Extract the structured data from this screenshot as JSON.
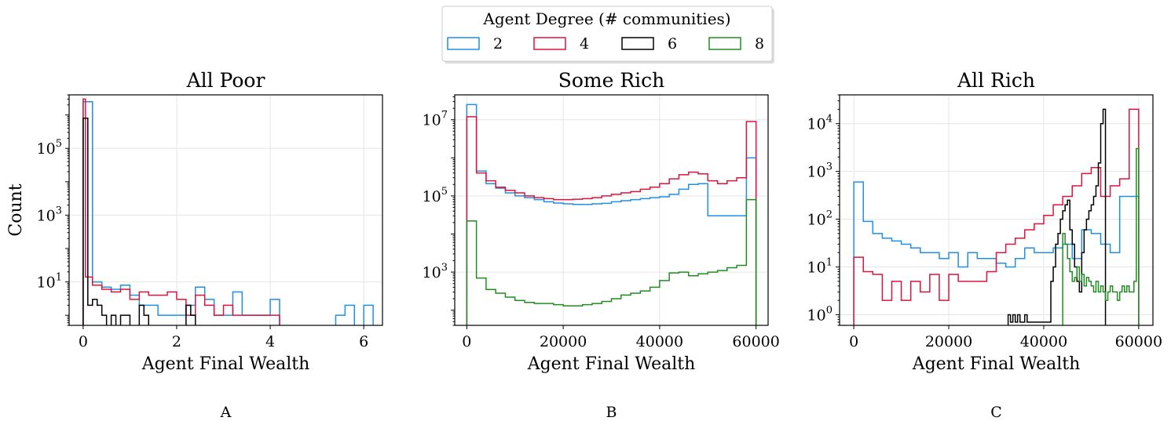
{
  "legend": {
    "title": "Agent Degree (# communities)",
    "entries": [
      {
        "label": "2",
        "color": "#1f8fe8"
      },
      {
        "label": "4",
        "color": "#dc143c"
      },
      {
        "label": "6",
        "color": "#000000"
      },
      {
        "label": "8",
        "color": "#228b22"
      }
    ]
  },
  "chart_data": [
    {
      "type": "histogram-step",
      "panel_label": "A",
      "title": "All Poor",
      "xlabel": "Agent Final Wealth",
      "ylabel": "Count",
      "xscale": "linear",
      "yscale": "log",
      "xlim": [
        -0.3,
        6.4
      ],
      "ylim": [
        0.5,
        4000000
      ],
      "xticks": [
        0,
        2,
        4,
        6
      ],
      "xtick_labels": [
        "0",
        "2",
        "4",
        "6"
      ],
      "yticks": [
        10,
        1000,
        100000
      ],
      "ytick_labels": [
        "10^1",
        "10^3",
        "10^5"
      ],
      "grid": true,
      "series": [
        {
          "name": "2",
          "edges": [
            0,
            0.2,
            0.4,
            0.6,
            0.8,
            1.0,
            1.2,
            1.4,
            1.6,
            1.8,
            2.0,
            2.2,
            2.4,
            2.6,
            2.8,
            3.0,
            3.2,
            3.4,
            3.6,
            3.8,
            4.0,
            4.2,
            4.4,
            4.6,
            4.8,
            5.0,
            5.2,
            5.4,
            5.6,
            5.8,
            6.0,
            6.2
          ],
          "counts": [
            2500000,
            10,
            7,
            6,
            8,
            4,
            2,
            2,
            1,
            1,
            1,
            2,
            7,
            3,
            1,
            1,
            5,
            1,
            1,
            1,
            3,
            0,
            0,
            0,
            0,
            0,
            0,
            1,
            2,
            0,
            2
          ]
        },
        {
          "name": "4",
          "edges": [
            0,
            0.05,
            0.2,
            0.4,
            0.6,
            0.8,
            1.0,
            1.2,
            1.4,
            1.6,
            1.8,
            2.0,
            2.2,
            2.4,
            2.6,
            2.8,
            3.0,
            3.2,
            3.4,
            3.6,
            3.8,
            4.0,
            4.2
          ],
          "counts": [
            3000000,
            14,
            8,
            6,
            5,
            6,
            3,
            5,
            4,
            4,
            5,
            3,
            1,
            4,
            2,
            1,
            2,
            1,
            1,
            1,
            1,
            1
          ]
        },
        {
          "name": "6",
          "edges": [
            0,
            0.1,
            0.2,
            0.3,
            0.4,
            0.5,
            0.6,
            0.7,
            0.8,
            0.9,
            1.0,
            1.1,
            1.2,
            1.3,
            1.4,
            2.2,
            2.3,
            2.4,
            2.5
          ],
          "counts": [
            800000,
            2,
            3,
            2,
            1,
            0,
            1,
            0,
            1,
            1,
            0,
            0,
            2,
            1,
            0,
            2,
            1,
            0
          ]
        },
        {
          "name": "8",
          "edges": [],
          "counts": []
        }
      ]
    },
    {
      "type": "histogram-step",
      "panel_label": "B",
      "title": "Some Rich",
      "xlabel": "Agent Final Wealth",
      "ylabel": "",
      "xscale": "linear",
      "yscale": "log",
      "xlim": [
        -2500,
        62500
      ],
      "ylim": [
        40,
        45000000
      ],
      "xticks": [
        0,
        20000,
        40000,
        60000
      ],
      "xtick_labels": [
        "0",
        "20000",
        "40000",
        "60000"
      ],
      "yticks": [
        1000,
        100000,
        10000000
      ],
      "ytick_labels": [
        "10^3",
        "10^5",
        "10^7"
      ],
      "grid": true,
      "series": [
        {
          "name": "2",
          "bin_start": 0,
          "bin_width": 2000,
          "counts": [
            25000000,
            450000,
            210000,
            160000,
            120000,
            100000,
            90000,
            80000,
            70000,
            65000,
            62000,
            60000,
            60000,
            62000,
            64000,
            70000,
            75000,
            80000,
            85000,
            90000,
            95000,
            110000,
            150000,
            200000,
            210000,
            30000,
            30000,
            30000,
            30000,
            1000000
          ]
        },
        {
          "name": "4",
          "bin_start": 0,
          "bin_width": 2000,
          "counts": [
            12000000,
            400000,
            250000,
            170000,
            140000,
            120000,
            100000,
            90000,
            85000,
            80000,
            80000,
            82000,
            85000,
            90000,
            100000,
            110000,
            120000,
            130000,
            150000,
            170000,
            210000,
            280000,
            360000,
            420000,
            380000,
            250000,
            210000,
            250000,
            300000,
            9000000
          ]
        },
        {
          "name": "6",
          "bin_start": 0,
          "bin_width": 2000,
          "counts": []
        },
        {
          "name": "8",
          "bin_start": 0,
          "bin_width": 2000,
          "counts": [
            22000,
            700,
            350,
            280,
            220,
            180,
            160,
            150,
            150,
            140,
            130,
            130,
            140,
            150,
            170,
            200,
            250,
            280,
            320,
            400,
            600,
            950,
            1000,
            800,
            900,
            1000,
            1100,
            1300,
            1500,
            80000
          ]
        }
      ]
    },
    {
      "type": "histogram-step",
      "panel_label": "C",
      "title": "All Rich",
      "xlabel": "Agent Final Wealth",
      "ylabel": "",
      "xscale": "linear",
      "yscale": "log",
      "xlim": [
        -3000,
        63000
      ],
      "ylim": [
        0.6,
        40000
      ],
      "xticks": [
        0,
        20000,
        40000,
        60000
      ],
      "xtick_labels": [
        "0",
        "20000",
        "40000",
        "60000"
      ],
      "yticks": [
        1,
        10,
        100,
        1000,
        10000
      ],
      "ytick_labels": [
        "10^0",
        "10^1",
        "10^2",
        "10^3",
        "10^4"
      ],
      "grid": true,
      "series": [
        {
          "name": "2",
          "bin_start": 0,
          "bin_width": 2000,
          "counts": [
            600,
            90,
            50,
            40,
            35,
            30,
            25,
            20,
            20,
            15,
            20,
            10,
            20,
            15,
            15,
            12,
            10,
            15,
            25,
            20,
            20,
            25,
            30,
            15,
            60,
            50,
            30,
            20,
            300,
            300
          ]
        },
        {
          "name": "4",
          "bin_start": 0,
          "bin_width": 2000,
          "counts": [
            16,
            8,
            7,
            2,
            5,
            2,
            5,
            3,
            7,
            2,
            7,
            5,
            5,
            5,
            8,
            20,
            30,
            40,
            60,
            80,
            120,
            200,
            300,
            500,
            900,
            1200,
            300,
            500,
            700,
            20000
          ]
        },
        {
          "name": "6",
          "bin_start": 32500,
          "bin_width": 500,
          "counts": [
            1,
            0.7,
            1,
            0.7,
            1,
            0.7,
            0.7,
            1,
            0.7,
            0.7,
            0.7,
            0.7,
            0.7,
            0.7,
            0.7,
            0.7,
            0.7,
            0.7,
            5,
            10,
            30,
            50,
            100,
            150,
            200,
            250,
            60,
            30,
            10,
            5,
            3,
            20,
            60,
            100,
            150,
            200,
            300,
            500,
            1500,
            10000,
            20000
          ]
        },
        {
          "name": "8",
          "bin_start": 44000,
          "bin_width": 500,
          "counts": [
            50,
            30,
            15,
            8,
            5,
            6,
            10,
            5,
            7,
            4,
            6,
            5,
            4,
            3,
            5,
            3,
            4,
            3,
            2,
            3,
            4,
            3,
            3,
            2,
            3,
            4,
            3,
            4,
            3,
            3,
            5,
            3000
          ]
        }
      ]
    }
  ]
}
